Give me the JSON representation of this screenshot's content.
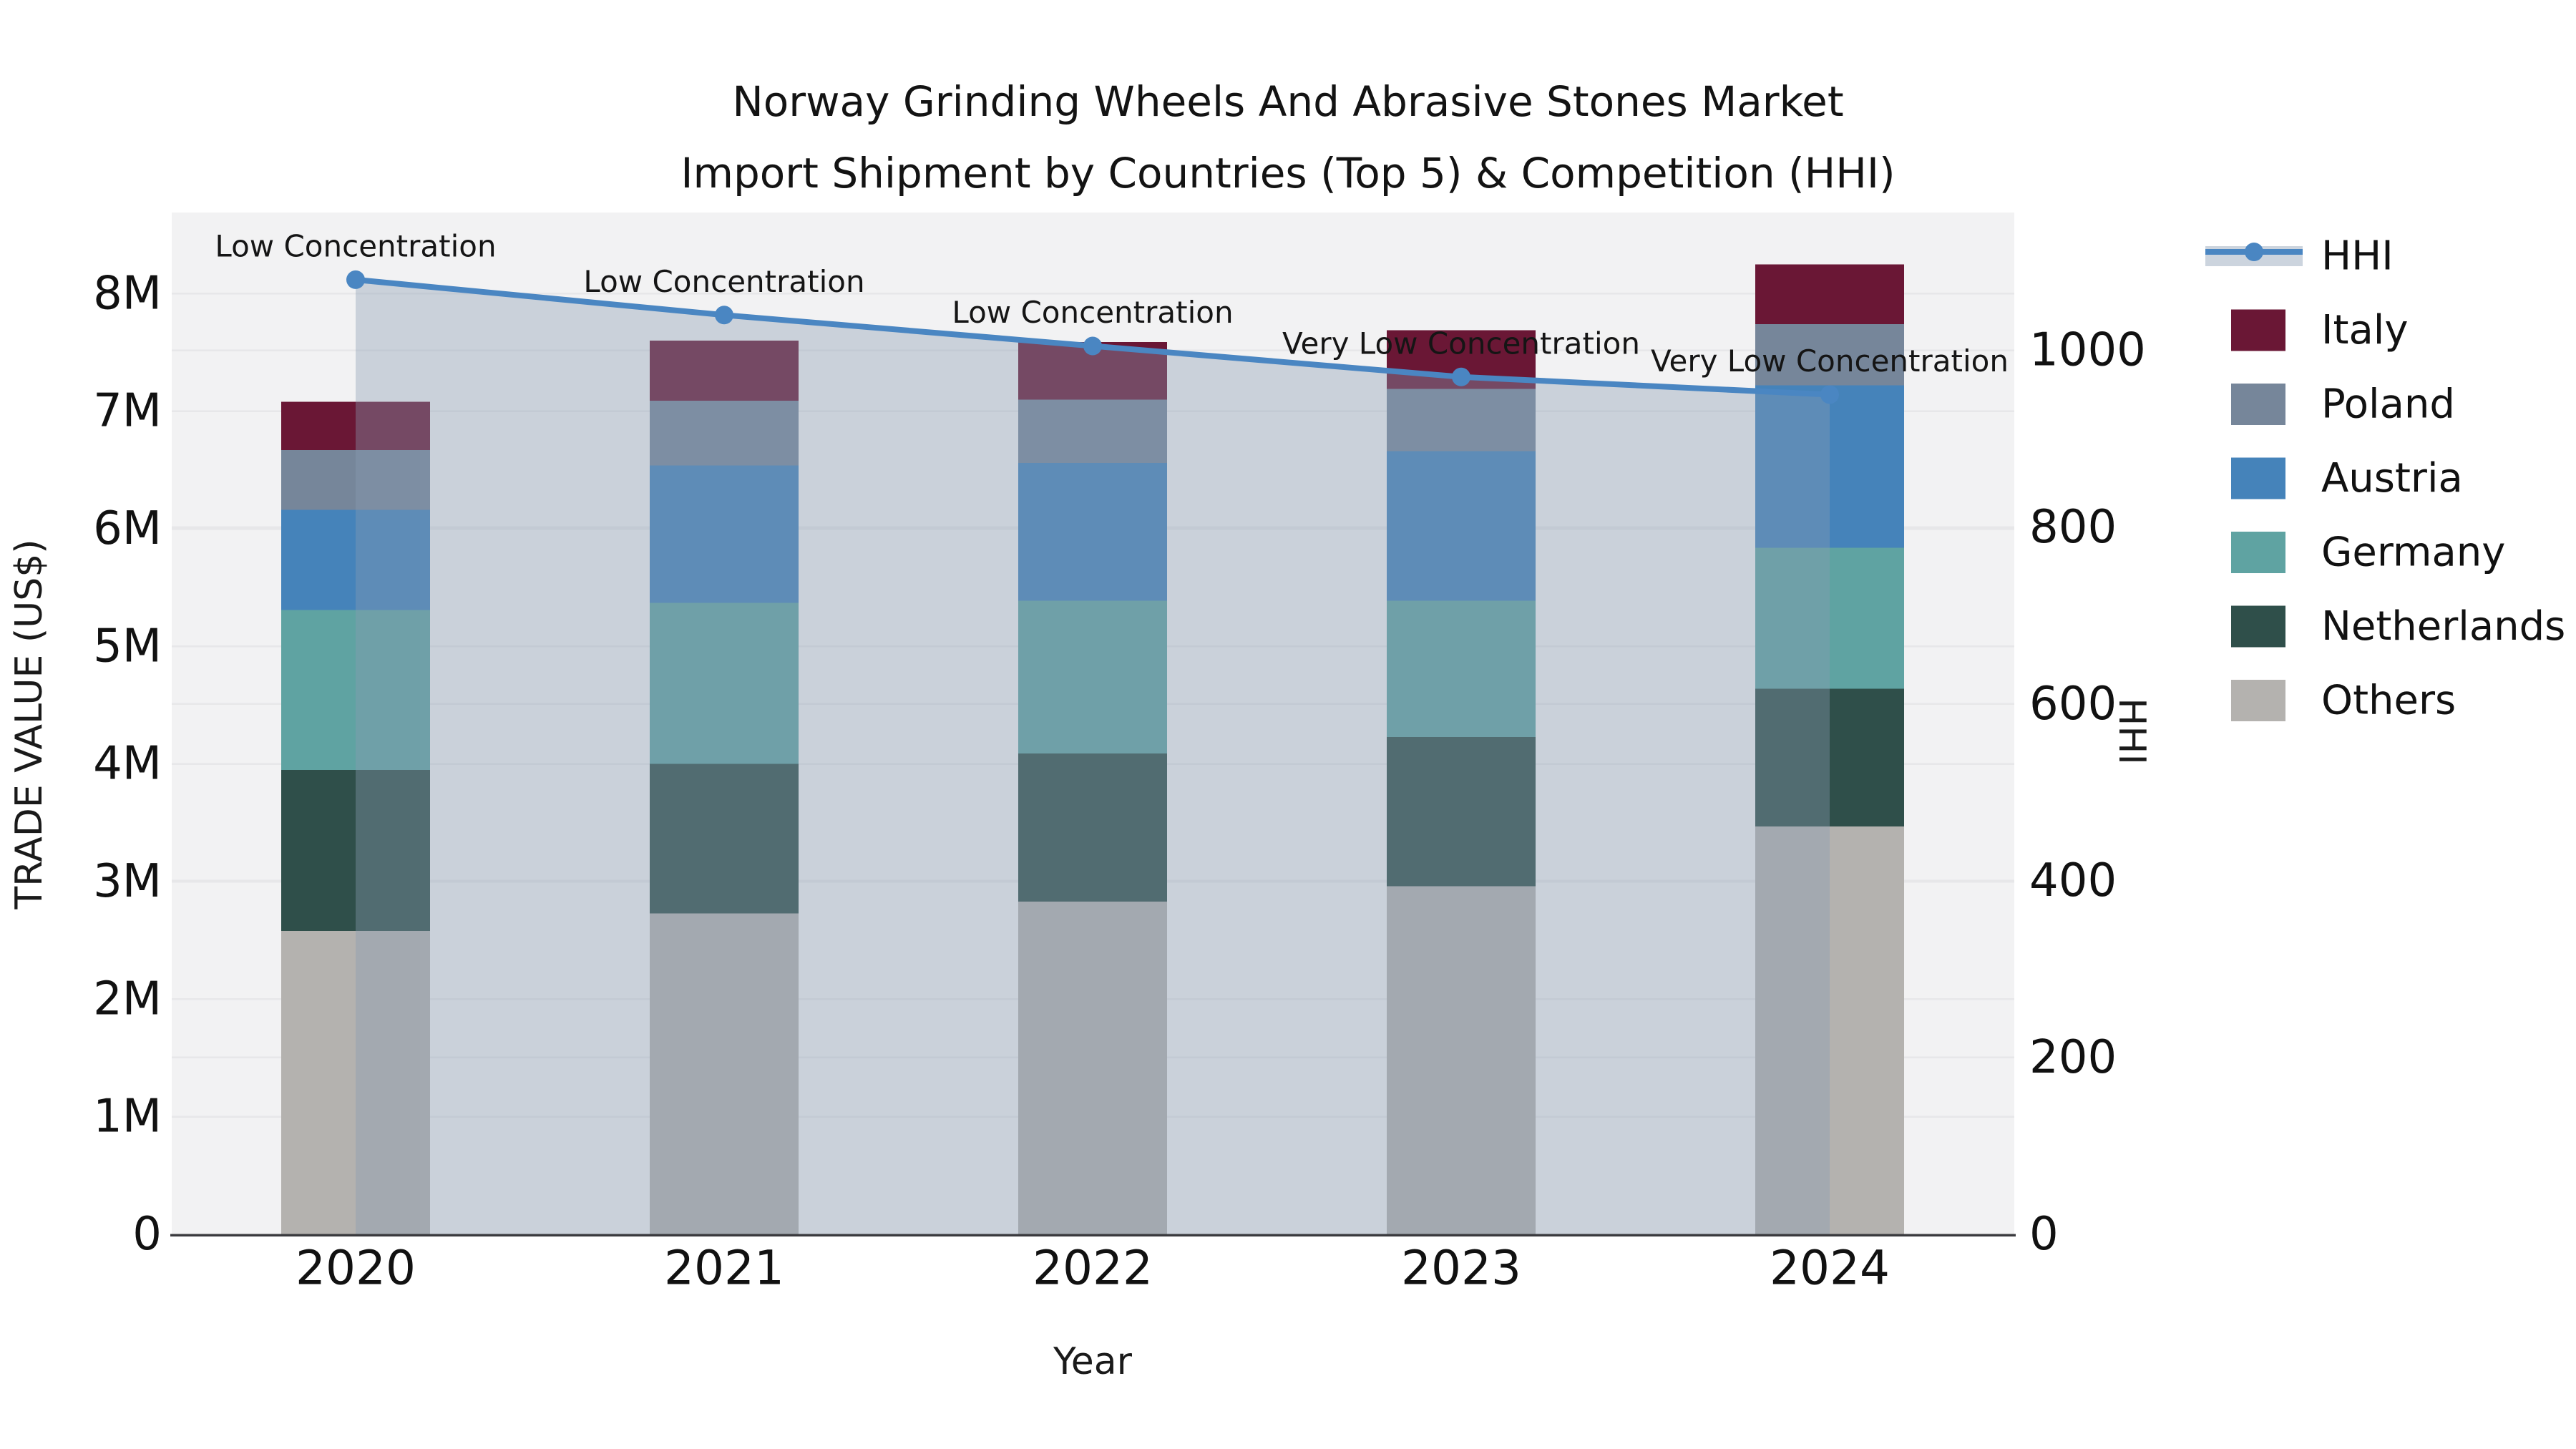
{
  "title": {
    "line1": "Norway Grinding Wheels And Abrasive Stones Market",
    "line2": "Import Shipment by Countries (Top 5) & Competition (HHI)"
  },
  "chart_data": {
    "type": "bar+line",
    "title": "Norway Grinding Wheels And Abrasive Stones Market - Import Shipment by Countries (Top 5) & Competition (HHI)",
    "categories": [
      "2020",
      "2021",
      "2022",
      "2023",
      "2024"
    ],
    "value_unit": "million US$ (trade value, left axis)",
    "bar_series": [
      {
        "name": "Others",
        "color": "#b4b2af",
        "values": [
          2.58,
          2.73,
          2.83,
          2.96,
          3.47
        ]
      },
      {
        "name": "Netherlands",
        "color": "#2f4f4a",
        "values": [
          1.37,
          1.27,
          1.26,
          1.27,
          1.17
        ]
      },
      {
        "name": "Germany",
        "color": "#5fa3a2",
        "values": [
          1.36,
          1.37,
          1.3,
          1.16,
          1.2
        ]
      },
      {
        "name": "Austria",
        "color": "#4583ba",
        "values": [
          0.85,
          1.17,
          1.17,
          1.27,
          1.38
        ]
      },
      {
        "name": "Poland",
        "color": "#76869a",
        "values": [
          0.51,
          0.55,
          0.54,
          0.53,
          0.52
        ]
      },
      {
        "name": "Italy",
        "color": "#6a1735",
        "values": [
          0.41,
          0.51,
          0.49,
          0.5,
          0.51
        ]
      }
    ],
    "bar_totals": [
      7.08,
      7.6,
      7.59,
      7.69,
      8.25
    ],
    "line_series": {
      "name": "HHI",
      "color": "#4a86c2",
      "area_color": "#8a9bb4",
      "area_opacity": 0.38,
      "values": [
        1080,
        1040,
        1005,
        970,
        950
      ],
      "annotations": [
        "Low Concentration",
        "Low Concentration",
        "Low Concentration",
        "Very Low Concentration",
        "Very Low Concentration"
      ]
    },
    "left_axis": {
      "title": "TRADE VALUE (US$)",
      "ticks": [
        "0",
        "1M",
        "2M",
        "3M",
        "4M",
        "5M",
        "6M",
        "7M",
        "8M"
      ],
      "tick_values": [
        0,
        1,
        2,
        3,
        4,
        5,
        6,
        7,
        8
      ],
      "range": [
        0,
        8.69
      ]
    },
    "right_axis": {
      "title": "HHI",
      "ticks": [
        "0",
        "200",
        "400",
        "600",
        "800",
        "1000"
      ],
      "tick_values": [
        0,
        200,
        400,
        600,
        800,
        1000
      ],
      "range": [
        0,
        1156
      ]
    },
    "x_axis": {
      "title": "Year"
    },
    "legend": {
      "position": "right",
      "items": [
        {
          "label": "HHI",
          "type": "line",
          "color": "#4a86c2"
        },
        {
          "label": "Italy",
          "type": "swatch",
          "color": "#6a1735"
        },
        {
          "label": "Poland",
          "type": "swatch",
          "color": "#76869a"
        },
        {
          "label": "Austria",
          "type": "swatch",
          "color": "#4583ba"
        },
        {
          "label": "Germany",
          "type": "swatch",
          "color": "#5fa3a2"
        },
        {
          "label": "Netherlands",
          "type": "swatch",
          "color": "#2f4f4a"
        },
        {
          "label": "Others",
          "type": "swatch",
          "color": "#b4b2af"
        }
      ]
    },
    "colors": {
      "plot_bg": "#f2f2f3",
      "page_bg": "#ffffff",
      "grid": "#e7e7e9",
      "axis_line": "#3a3a3e",
      "legend_line_band": "#ccd4de",
      "text": "#1a1a1a"
    }
  }
}
